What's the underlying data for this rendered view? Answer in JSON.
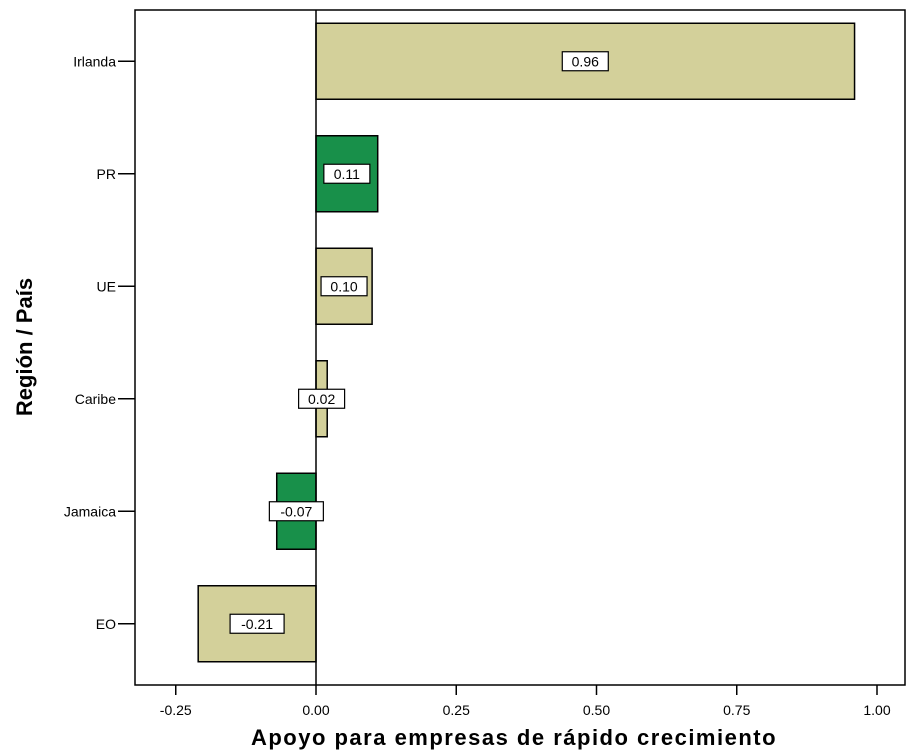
{
  "chart_data": {
    "type": "bar",
    "orientation": "horizontal",
    "categories": [
      "Irlanda",
      "PR",
      "UE",
      "Caribe",
      "Jamaica",
      "EO"
    ],
    "values": [
      0.96,
      0.11,
      0.1,
      0.02,
      -0.07,
      -0.21
    ],
    "data_labels": [
      "0.96",
      "0.11",
      "0.10",
      "0.02",
      "-0.07",
      "-0.21"
    ],
    "bar_colors": [
      "#d3d09a",
      "#18904a",
      "#d3d09a",
      "#d3d09a",
      "#18904a",
      "#d3d09a"
    ],
    "xlabel": "Apoyo para empresas de rápido crecimiento",
    "ylabel": "Región / País",
    "xlim": [
      -0.32,
      1.05
    ],
    "xticks": [
      -0.25,
      0.0,
      0.25,
      0.5,
      0.75,
      1.0
    ],
    "xtick_labels": [
      "-0.25",
      "0.00",
      "0.25",
      "0.50",
      "0.75",
      "1.00"
    ],
    "grid": false,
    "legend": "none"
  }
}
